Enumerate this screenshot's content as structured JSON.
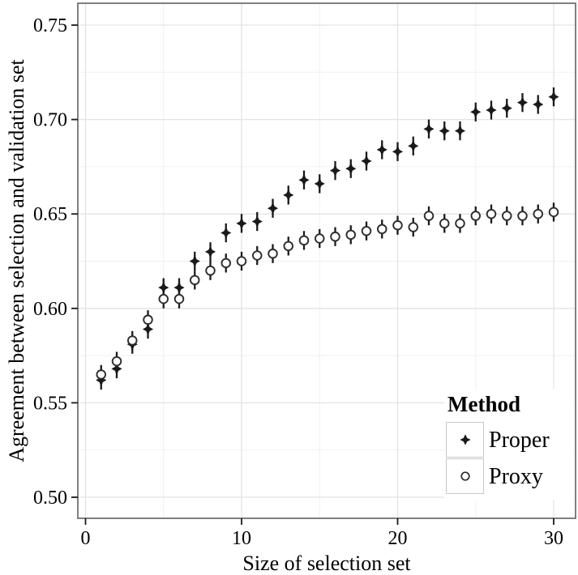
{
  "chart_data": {
    "type": "scatter",
    "title": "",
    "xlabel": "Size of selection set",
    "ylabel": "Agreement between selection and validation set",
    "xlim": [
      -0.5,
      31.45
    ],
    "ylim": [
      0.489,
      0.761
    ],
    "x_ticks": [
      0,
      10,
      20,
      30
    ],
    "x_minor_ticks": [
      5,
      15,
      25
    ],
    "y_ticks": [
      0.5,
      0.55,
      0.6,
      0.65,
      0.7,
      0.75
    ],
    "y_tick_labels": [
      "0.50",
      "0.55",
      "0.60",
      "0.65",
      "0.70",
      "0.75"
    ],
    "y_minor_ticks": [
      0.525,
      0.575,
      0.625,
      0.675,
      0.725
    ],
    "grid": "major-and-minor",
    "error_bar_half": 0.005,
    "x": [
      1,
      2,
      3,
      4,
      5,
      6,
      7,
      8,
      9,
      10,
      11,
      12,
      13,
      14,
      15,
      16,
      17,
      18,
      19,
      20,
      21,
      22,
      23,
      24,
      25,
      26,
      27,
      28,
      29,
      30
    ],
    "series": [
      {
        "name": "Proper",
        "marker": "filled-diamond",
        "color": "#1a1a1a",
        "values": [
          0.562,
          0.568,
          0.581,
          0.589,
          0.611,
          0.611,
          0.625,
          0.63,
          0.64,
          0.645,
          0.646,
          0.653,
          0.66,
          0.668,
          0.666,
          0.673,
          0.674,
          0.678,
          0.684,
          0.683,
          0.686,
          0.695,
          0.694,
          0.694,
          0.704,
          0.705,
          0.706,
          0.709,
          0.708,
          0.712
        ]
      },
      {
        "name": "Proxy",
        "marker": "open-circle",
        "color": "#2d2d2d",
        "values": [
          0.565,
          0.572,
          0.583,
          0.594,
          0.605,
          0.605,
          0.615,
          0.62,
          0.624,
          0.625,
          0.628,
          0.629,
          0.633,
          0.636,
          0.637,
          0.638,
          0.639,
          0.641,
          0.642,
          0.644,
          0.643,
          0.649,
          0.645,
          0.645,
          0.649,
          0.65,
          0.649,
          0.649,
          0.65,
          0.651
        ]
      }
    ],
    "legend": {
      "title": "Method",
      "position": "inside-bottom-right",
      "entries": [
        "Proper",
        "Proxy"
      ]
    },
    "colors": {
      "panel_border": "#606060",
      "major_grid": "#e3e3e3",
      "minor_grid": "#f0f0f0",
      "tick": "#1a1a1a",
      "marker": "#1a1a1a",
      "background": "#ffffff"
    }
  }
}
